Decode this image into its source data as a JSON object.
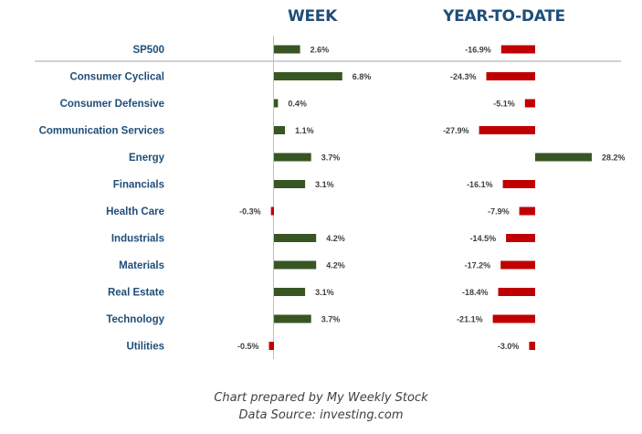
{
  "headers": {
    "week": "WEEK",
    "ytd": "YEAR-TO-DATE"
  },
  "colors": {
    "positive": "#375623",
    "negative": "#c00000",
    "label": "#1f4e79",
    "axis": "#bfbfbf",
    "separator": "#a6a6a6"
  },
  "chart_data": {
    "type": "bar",
    "orientation": "horizontal",
    "categories": [
      "SP500",
      "Consumer Cyclical",
      "Consumer Defensive",
      "Communication Services",
      "Energy",
      "Financials",
      "Health Care",
      "Industrials",
      "Materials",
      "Real Estate",
      "Technology",
      "Utilities"
    ],
    "series": [
      {
        "name": "WEEK",
        "values": [
          2.6,
          6.8,
          0.4,
          1.1,
          3.7,
          3.1,
          -0.3,
          4.2,
          4.2,
          3.1,
          3.7,
          -0.5
        ],
        "labels": [
          "2.6%",
          "6.8%",
          "0.4%",
          "1.1%",
          "3.7%",
          "3.1%",
          "-0.3%",
          "4.2%",
          "4.2%",
          "3.1%",
          "3.7%",
          "-0.5%"
        ]
      },
      {
        "name": "YEAR-TO-DATE",
        "values": [
          -16.9,
          -24.3,
          -5.1,
          -27.9,
          28.2,
          -16.1,
          -7.9,
          -14.5,
          -17.2,
          -18.4,
          -21.1,
          -3.0
        ],
        "labels": [
          "-16.9%",
          "-24.3%",
          "-5.1%",
          "-27.9%",
          "28.2%",
          "-16.1%",
          "-7.9%",
          "-14.5%",
          "-17.2%",
          "-18.4%",
          "-21.1%",
          "-3.0%"
        ]
      }
    ],
    "legend": "none",
    "grid": false
  },
  "footer": {
    "line1": "Chart prepared by My Weekly Stock",
    "line2": "Data Source: investing.com"
  }
}
